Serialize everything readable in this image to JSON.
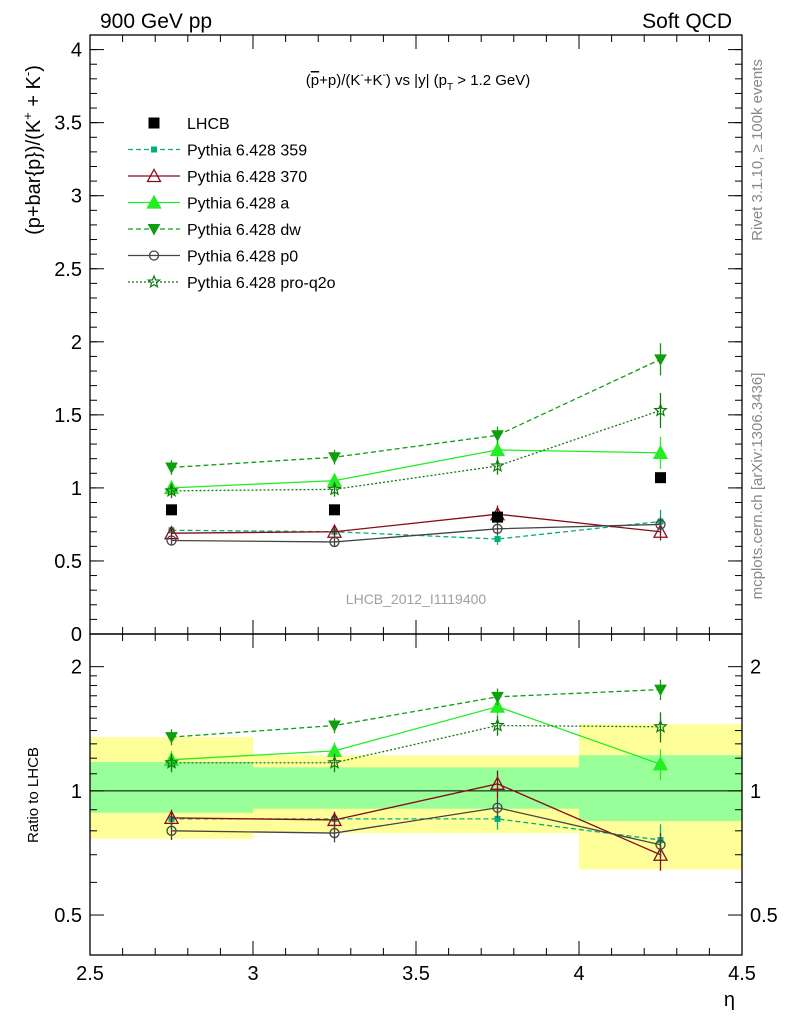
{
  "header": {
    "left": "900 GeV pp",
    "right": "Soft QCD"
  },
  "side_text": {
    "rivet": "Rivet 3.1.10, ≥ 100k events",
    "mcplots": "mcplots.cern.ch [arXiv:1306.3436]"
  },
  "chart_data": [
    {
      "type": "scatter",
      "panel": "main",
      "title": "(p̄+p)/(K⁻+K⁻) vs |y| (p_T > 1.2 GeV)",
      "title_parts": {
        "a": "(",
        "pbar": "p",
        "b": "+p)/(K",
        "c": "+K",
        "d": ") vs |y| (p",
        "e": " > 1.2 GeV)",
        "minus": "-",
        "sub": "T"
      },
      "ylabel": "(p+bar{p})/(K",
      "ylabel_parts": {
        "a": "(p+bar{p})/(K",
        "sup1": "+",
        "b": " + K",
        "sup2": "-",
        "c": ")"
      },
      "xlim": [
        2.5,
        4.5
      ],
      "ylim": [
        0,
        4.1
      ],
      "yticks": [
        "0",
        "0.5",
        "1",
        "1.5",
        "2",
        "2.5",
        "3",
        "3.5",
        "4"
      ],
      "watermark": "LHCB_2012_I1119400",
      "legend_placement": "top-left",
      "x": [
        2.75,
        3.25,
        3.75,
        4.25
      ],
      "series": [
        {
          "name": "LHCB",
          "color": "#000000",
          "marker": "square",
          "style": "none",
          "values": [
            0.85,
            0.85,
            0.8,
            1.07
          ],
          "err": [
            0.01,
            0.01,
            0.01,
            0.01
          ]
        },
        {
          "name": "Pythia 6.428 359",
          "color": "#00b07a",
          "marker": "smallsquare",
          "style": "dashed",
          "values": [
            0.71,
            0.7,
            0.65,
            0.77
          ],
          "err": [
            0.03,
            0.03,
            0.04,
            0.08
          ]
        },
        {
          "name": "Pythia 6.428 370",
          "color": "#8b0a1a",
          "marker": "triangle-open",
          "style": "solid",
          "values": [
            0.69,
            0.7,
            0.82,
            0.7
          ],
          "err": [
            0.04,
            0.04,
            0.06,
            0.06
          ]
        },
        {
          "name": "Pythia 6.428 a",
          "color": "#22ee22",
          "marker": "triangle",
          "style": "solid",
          "values": [
            1.0,
            1.05,
            1.26,
            1.24
          ],
          "err": [
            0.05,
            0.05,
            0.06,
            0.11
          ]
        },
        {
          "name": "Pythia 6.428 dw",
          "color": "#0e9e0e",
          "marker": "triangle-down",
          "style": "dashed",
          "values": [
            1.14,
            1.21,
            1.36,
            1.88
          ],
          "err": [
            0.05,
            0.05,
            0.06,
            0.11
          ]
        },
        {
          "name": "Pythia 6.428 p0",
          "color": "#444444",
          "marker": "circle-open",
          "style": "solid",
          "values": [
            0.64,
            0.63,
            0.72,
            0.75
          ],
          "err": [
            0.03,
            0.03,
            0.04,
            0.05
          ]
        },
        {
          "name": "Pythia 6.428 pro-q2o",
          "color": "#137a13",
          "marker": "star",
          "style": "dotted",
          "values": [
            0.98,
            0.99,
            1.15,
            1.53
          ],
          "err": [
            0.05,
            0.05,
            0.06,
            0.12
          ]
        }
      ]
    },
    {
      "type": "scatter",
      "panel": "ratio",
      "ylabel": "Ratio to LHCB",
      "xlabel": "η",
      "xlim": [
        2.5,
        4.5
      ],
      "ylim": [
        0.4,
        2.4
      ],
      "ylog": true,
      "yticks": [
        "0.5",
        "1",
        "2"
      ],
      "xticks": [
        "2.5",
        "3",
        "3.5",
        "4",
        "4.5"
      ],
      "bands": [
        {
          "x": [
            2.5,
            3.0
          ],
          "inner": [
            0.885,
            1.175
          ],
          "outer": [
            0.765,
            1.35
          ]
        },
        {
          "x": [
            3.0,
            3.5
          ],
          "inner": [
            0.905,
            1.14
          ],
          "outer": [
            0.79,
            1.22
          ]
        },
        {
          "x": [
            3.5,
            4.0
          ],
          "inner": [
            0.905,
            1.14
          ],
          "outer": [
            0.79,
            1.22
          ]
        },
        {
          "x": [
            4.0,
            4.5
          ],
          "inner": [
            0.845,
            1.22
          ],
          "outer": [
            0.645,
            1.45
          ]
        }
      ],
      "series": [
        {
          "name": "Pythia 6.428 359",
          "values": [
            0.855,
            0.855,
            0.855,
            0.76
          ],
          "err": [
            0.03,
            0.03,
            0.05,
            0.07
          ]
        },
        {
          "name": "Pythia 6.428 370",
          "values": [
            0.86,
            0.85,
            1.04,
            0.7
          ],
          "err": [
            0.04,
            0.04,
            0.08,
            0.06
          ]
        },
        {
          "name": "Pythia 6.428 a",
          "values": [
            1.19,
            1.25,
            1.6,
            1.16
          ],
          "err": [
            0.06,
            0.06,
            0.08,
            0.1
          ]
        },
        {
          "name": "Pythia 6.428 dw",
          "values": [
            1.35,
            1.44,
            1.69,
            1.76
          ],
          "err": [
            0.06,
            0.06,
            0.08,
            0.1
          ]
        },
        {
          "name": "Pythia 6.428 p0",
          "values": [
            0.8,
            0.79,
            0.91,
            0.74
          ],
          "err": [
            0.04,
            0.04,
            0.05,
            0.05
          ]
        },
        {
          "name": "Pythia 6.428 pro-q2o",
          "values": [
            1.17,
            1.17,
            1.44,
            1.43
          ],
          "err": [
            0.06,
            0.06,
            0.08,
            0.12
          ]
        }
      ]
    }
  ]
}
